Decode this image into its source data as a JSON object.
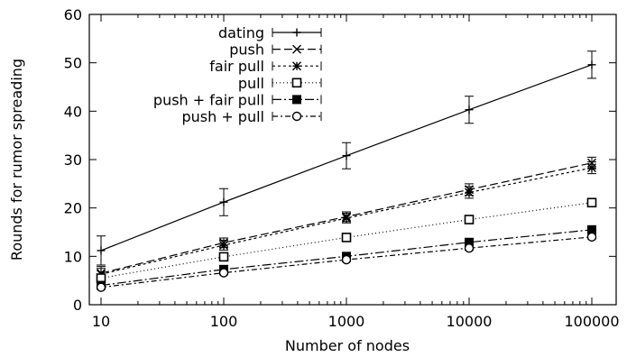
{
  "chart_data": {
    "type": "line",
    "xscale": "log",
    "x": [
      10,
      100,
      1000,
      10000,
      100000
    ],
    "xticks": [
      "10",
      "100",
      "1000",
      "10000",
      "100000"
    ],
    "yticks": [
      "0",
      "10",
      "20",
      "30",
      "40",
      "50",
      "60"
    ],
    "ylim": [
      0,
      60
    ],
    "xlabel": "Number of nodes",
    "ylabel": "Rounds for rumor spreading",
    "legend_position": "top-left",
    "grid": false,
    "series": [
      {
        "name": "dating",
        "values": [
          11.2,
          21.2,
          30.8,
          40.3,
          49.6
        ],
        "err": [
          3.0,
          2.8,
          2.7,
          2.8,
          2.8
        ],
        "dash": "",
        "marker": "plus"
      },
      {
        "name": "push",
        "values": [
          6.5,
          12.8,
          18.2,
          23.8,
          29.3
        ],
        "err": [
          1.4,
          1.0,
          1.0,
          1.2,
          1.2
        ],
        "dash": "9,4",
        "marker": "x"
      },
      {
        "name": "fair pull",
        "values": [
          6.3,
          12.3,
          17.9,
          23.2,
          28.3
        ],
        "err": [
          1.2,
          1.0,
          1.0,
          1.2,
          1.2
        ],
        "dash": "3,3",
        "marker": "star"
      },
      {
        "name": "pull",
        "values": [
          5.5,
          9.9,
          13.9,
          17.6,
          21.1
        ],
        "err": [
          0.8,
          0.8,
          0.8,
          0.8,
          0.8
        ],
        "dash": "1,3",
        "marker": "square-open"
      },
      {
        "name": "push + fair pull",
        "values": [
          4.0,
          7.3,
          10.0,
          12.9,
          15.5
        ],
        "err": [
          0.5,
          0.4,
          0.4,
          0.4,
          0.4
        ],
        "dash": "10,3,2,3",
        "marker": "square-filled"
      },
      {
        "name": "push + pull",
        "values": [
          3.6,
          6.6,
          9.3,
          11.7,
          14.0
        ],
        "err": [
          0.4,
          0.4,
          0.4,
          0.4,
          0.4
        ],
        "dash": "6,3,2,3",
        "marker": "circle-open"
      }
    ]
  }
}
